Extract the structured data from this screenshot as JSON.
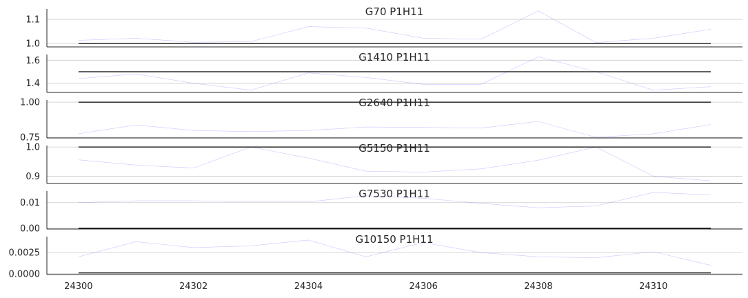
{
  "chart_data": {
    "type": "line",
    "shared_x_ticks": [
      "24300",
      "24302",
      "24304",
      "24306",
      "24308",
      "24310"
    ],
    "x_range": [
      24299.45,
      24311.55
    ],
    "grid": true,
    "panels": [
      {
        "title": "G70 P1H11",
        "ylim": [
          0.986,
          1.143
        ],
        "y_ticks": [
          {
            "label": "1.0",
            "value": 1.0
          },
          {
            "label": "1.1",
            "value": 1.1
          }
        ],
        "series": [
          {
            "color": "#0000ff",
            "x": [
              24300,
              24301,
              24302,
              24303,
              24304,
              24305,
              24306,
              24307,
              24308,
              24309,
              24310,
              24311
            ],
            "y": [
              1.013,
              1.022,
              1.005,
              1.008,
              1.07,
              1.064,
              1.022,
              1.018,
              1.135,
              1.004,
              1.022,
              1.059
            ]
          },
          {
            "color": "#000000",
            "x": [
              24300,
              24311
            ],
            "y": [
              1.0,
              1.0
            ]
          }
        ]
      },
      {
        "title": "G1410 P1H11",
        "ylim": [
          1.32,
          1.65
        ],
        "y_ticks": [
          {
            "label": "1.4",
            "value": 1.4
          },
          {
            "label": "1.6",
            "value": 1.6
          }
        ],
        "series": [
          {
            "color": "#0000ff",
            "x": [
              24300,
              24301,
              24302,
              24303,
              24304,
              24305,
              24306,
              24307,
              24308,
              24309,
              24310,
              24311
            ],
            "y": [
              1.44,
              1.48,
              1.4,
              1.34,
              1.49,
              1.45,
              1.39,
              1.39,
              1.63,
              1.5,
              1.34,
              1.37
            ]
          },
          {
            "color": "#000000",
            "x": [
              24300,
              24311
            ],
            "y": [
              1.5,
              1.5
            ]
          }
        ]
      },
      {
        "title": "G2640 P1H11",
        "ylim": [
          0.745,
          1.015
        ],
        "y_ticks": [
          {
            "label": "0.75",
            "value": 0.75
          },
          {
            "label": "1.00",
            "value": 1.0
          }
        ],
        "series": [
          {
            "color": "#0000ff",
            "x": [
              24300,
              24301,
              24302,
              24303,
              24304,
              24305,
              24306,
              24307,
              24308,
              24309,
              24310,
              24311
            ],
            "y": [
              0.775,
              0.838,
              0.798,
              0.79,
              0.798,
              0.823,
              0.82,
              0.815,
              0.863,
              0.75,
              0.775,
              0.84
            ]
          },
          {
            "color": "#000000",
            "x": [
              24300,
              24311
            ],
            "y": [
              1.0,
              1.0
            ]
          }
        ]
      },
      {
        "title": "G5150 P1H11",
        "ylim": [
          0.875,
          1.005
        ],
        "y_ticks": [
          {
            "label": "0.9",
            "value": 0.9
          },
          {
            "label": "1.0",
            "value": 1.0
          }
        ],
        "series": [
          {
            "color": "#0000ff",
            "x": [
              24300,
              24301,
              24302,
              24303,
              24304,
              24305,
              24306,
              24307,
              24308,
              24309,
              24310,
              24311
            ],
            "y": [
              0.956,
              0.938,
              0.928,
              1.0,
              0.962,
              0.917,
              0.914,
              0.925,
              0.955,
              1.0,
              0.9,
              0.884
            ]
          },
          {
            "color": "#000000",
            "x": [
              24300,
              24311
            ],
            "y": [
              1.0,
              1.0
            ]
          }
        ]
      },
      {
        "title": "G7530 P1H11",
        "ylim": [
          -0.0003,
          0.0145
        ],
        "y_ticks": [
          {
            "label": "0.00",
            "value": 0.0
          },
          {
            "label": "0.01",
            "value": 0.01
          }
        ],
        "series": [
          {
            "color": "#0000ff",
            "x": [
              24300,
              24301,
              24302,
              24303,
              24304,
              24305,
              24306,
              24307,
              24308,
              24309,
              24310,
              24311
            ],
            "y": [
              0.01,
              0.0107,
              0.0107,
              0.0103,
              0.0103,
              0.0127,
              0.0117,
              0.0097,
              0.008,
              0.0087,
              0.014,
              0.013
            ]
          },
          {
            "color": "#000000",
            "x": [
              24300,
              24311
            ],
            "y": [
              0.0,
              0.0
            ]
          }
        ]
      },
      {
        "title": "G10150 P1H11",
        "ylim": [
          -0.0001,
          0.0044
        ],
        "y_ticks": [
          {
            "label": "0.0000",
            "value": 0.0
          },
          {
            "label": "0.0025",
            "value": 0.0025
          }
        ],
        "series": [
          {
            "color": "#0000ff",
            "x": [
              24300,
              24301,
              24302,
              24303,
              24304,
              24305,
              24306,
              24307,
              24308,
              24309,
              24310,
              24311
            ],
            "y": [
              0.002,
              0.0038,
              0.0031,
              0.0033,
              0.004,
              0.002,
              0.0037,
              0.0025,
              0.002,
              0.0019,
              0.0026,
              0.001
            ]
          },
          {
            "color": "#000000",
            "x": [
              24300,
              24311
            ],
            "y": [
              0.0001,
              0.0001
            ]
          }
        ]
      }
    ]
  }
}
